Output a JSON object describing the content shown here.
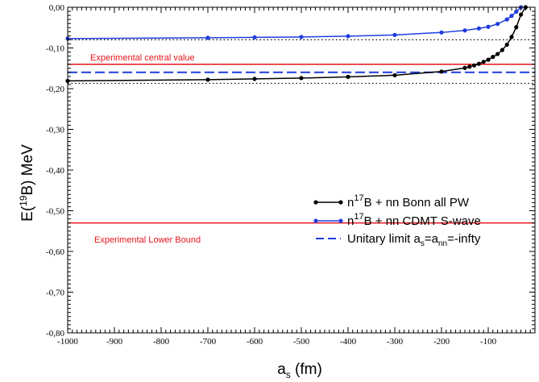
{
  "chart_data": {
    "type": "line",
    "xlabel_main": "a",
    "xlabel_sub": "s",
    "xlabel_tail": " (fm)",
    "ylabel_pre": "E(",
    "ylabel_sup": "19",
    "ylabel_post": "B) MeV",
    "xlim": [
      -1000,
      0
    ],
    "ylim": [
      -0.8,
      0.0
    ],
    "x_ticks": [
      -1000,
      -900,
      -800,
      -700,
      -600,
      -500,
      -400,
      -300,
      -200,
      -100
    ],
    "x_tick_labels": [
      "-1000",
      "-900",
      "-800",
      "-700",
      "-600",
      "-500",
      "-400",
      "-300",
      "-200",
      "-100"
    ],
    "y_ticks": [
      0.0,
      -0.1,
      -0.2,
      -0.3,
      -0.4,
      -0.5,
      -0.6,
      -0.7,
      -0.8
    ],
    "y_tick_labels": [
      "0,00",
      "-0,10",
      "-0,20",
      "-0,30",
      "-0,40",
      "-0,50",
      "-0,60",
      "-0,70",
      "-0,80"
    ],
    "grid": false,
    "legend_placement": "right-middle",
    "series": [
      {
        "name_pre": "n",
        "name_sup": "17",
        "name_post": "B + nn Bonn   all PW",
        "color": "#000000",
        "marker": "circle",
        "x": [
          -1000,
          -700,
          -600,
          -500,
          -400,
          -300,
          -200,
          -150,
          -140,
          -130,
          -120,
          -110,
          -100,
          -90,
          -80,
          -70,
          -60,
          -50,
          -40,
          -30,
          -20
        ],
        "y": [
          -0.181,
          -0.178,
          -0.176,
          -0.174,
          -0.171,
          -0.167,
          -0.158,
          -0.149,
          -0.146,
          -0.143,
          -0.139,
          -0.134,
          -0.129,
          -0.122,
          -0.115,
          -0.105,
          -0.092,
          -0.073,
          -0.049,
          -0.018,
          0.0
        ]
      },
      {
        "name_pre": "n",
        "name_sup": "17",
        "name_post": "B + nn CDMT S-wave",
        "color": "#1f3de0",
        "marker": "circle",
        "x": [
          -1000,
          -700,
          -600,
          -500,
          -400,
          -300,
          -200,
          -150,
          -120,
          -100,
          -80,
          -60,
          -50,
          -40,
          -30
        ],
        "y": [
          -0.077,
          -0.075,
          -0.074,
          -0.073,
          -0.071,
          -0.068,
          -0.062,
          -0.057,
          -0.052,
          -0.048,
          -0.041,
          -0.03,
          -0.021,
          -0.011,
          0.0
        ]
      }
    ],
    "reference_lines": [
      {
        "kind": "dashed",
        "color": "#1f3de0",
        "y": -0.16,
        "label_pre": "Unitary limit a",
        "label_sub1": "s",
        "label_mid": "=a",
        "label_sub2": "nn",
        "label_post": "=-infty"
      },
      {
        "kind": "solid",
        "color": "#e8141b",
        "y": -0.14,
        "text": "Experimental central value"
      },
      {
        "kind": "solid",
        "color": "#e8141b",
        "y": -0.53,
        "text": "Experimental Lower Bound"
      },
      {
        "kind": "dotted",
        "color": "#000000",
        "y": -0.08
      },
      {
        "kind": "dotted",
        "color": "#000000",
        "y": -0.187
      }
    ]
  }
}
